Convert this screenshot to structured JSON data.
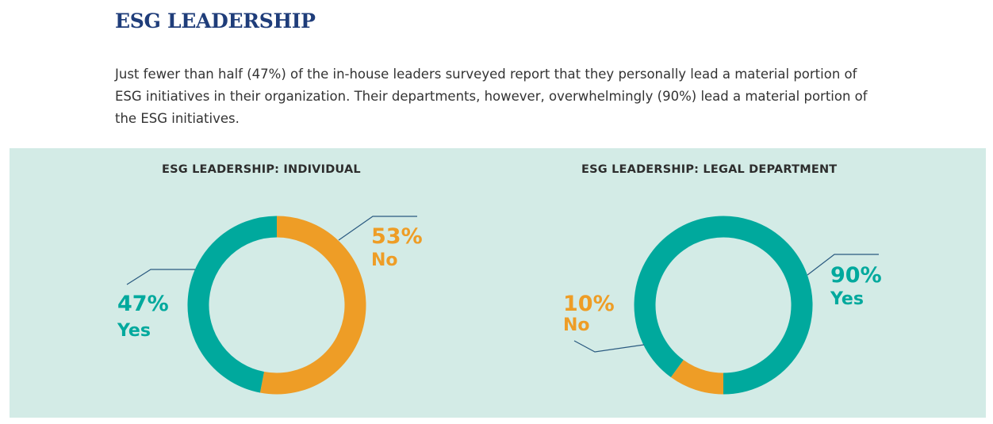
{
  "header": {
    "title": "ESG LEADERSHIP",
    "intro": "Just fewer than half (47%) of the in-house leaders surveyed report that they personally lead a material portion of ESG initiatives in their organization. Their departments, however, overwhelmingly (90%) lead a material portion of the ESG initiatives."
  },
  "colors": {
    "yes": "#00a99d",
    "no": "#ee9d26",
    "leader_line": "#2a5a80",
    "panel_bg": "#d3ebe6"
  },
  "chart_data": [
    {
      "type": "pie",
      "variant": "donut",
      "title": "ESG LEADERSHIP: INDIVIDUAL",
      "slices": [
        {
          "label": "No",
          "value": 53,
          "display": "53%",
          "color": "#ee9d26"
        },
        {
          "label": "Yes",
          "value": 47,
          "display": "47%",
          "color": "#00a99d"
        }
      ]
    },
    {
      "type": "pie",
      "variant": "donut",
      "title": "ESG LEADERSHIP: LEGAL DEPARTMENT",
      "slices": [
        {
          "label": "No",
          "value": 10,
          "display": "10%",
          "color": "#ee9d26"
        },
        {
          "label": "Yes",
          "value": 90,
          "display": "90%",
          "color": "#00a99d"
        }
      ]
    }
  ]
}
